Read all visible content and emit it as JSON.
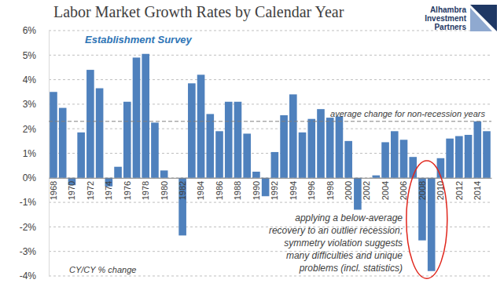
{
  "chart_data": {
    "type": "bar",
    "title": "Labor Market Growth Rates by Calendar Year",
    "subtitle": "Establishment Survey",
    "brand": [
      "Alhambra",
      "Investment",
      "Partners"
    ],
    "y_label": "CY/CY % change",
    "categories": [
      "1968",
      null,
      "1970",
      null,
      "1972",
      null,
      "1974",
      null,
      "1976",
      null,
      "1978",
      null,
      "1980",
      null,
      "1982",
      null,
      "1984",
      null,
      "1986",
      null,
      "1988",
      null,
      "1990",
      null,
      "1992",
      null,
      "1994",
      null,
      "1996",
      null,
      "1998",
      null,
      "2000",
      null,
      "2002",
      null,
      "2004",
      null,
      "2006",
      null,
      "2008",
      null,
      "2010",
      null,
      "2012",
      null,
      "2014",
      null
    ],
    "values": [
      3.5,
      2.85,
      -0.3,
      1.85,
      4.4,
      3.65,
      -0.35,
      0.45,
      3.1,
      4.9,
      5.05,
      2.25,
      0.3,
      0,
      -2.35,
      3.85,
      4.2,
      2.6,
      1.9,
      3.1,
      3.1,
      1.8,
      0.25,
      -0.75,
      1.05,
      2.55,
      3.4,
      1.85,
      2.4,
      2.8,
      2.45,
      2.5,
      1.5,
      -1.3,
      0,
      0.1,
      1.45,
      1.9,
      1.55,
      0.85,
      -2.55,
      -3.8,
      0.8,
      1.6,
      1.7,
      1.75,
      2.3,
      1.9
    ],
    "color": "#4f81bd",
    "ylim": [
      -4,
      6
    ],
    "yticks": [
      {
        "value": -4,
        "label": "-4%"
      },
      {
        "value": -3,
        "label": "-3%"
      },
      {
        "value": -2,
        "label": "-2%"
      },
      {
        "value": -1,
        "label": "-1%"
      },
      {
        "value": 0,
        "label": "0%"
      },
      {
        "value": 1,
        "label": "1%"
      },
      {
        "value": 2,
        "label": "2%"
      },
      {
        "value": 3,
        "label": "3%"
      },
      {
        "value": 4,
        "label": "4%"
      },
      {
        "value": 5,
        "label": "5%"
      },
      {
        "value": 6,
        "label": "6%"
      }
    ],
    "grid": true,
    "reference_line": {
      "value": 2.3,
      "label": "average change for non-recession years"
    },
    "annotation": [
      "applying a below-average",
      "recovery to an outlier recession;",
      "symmetry violation suggests",
      "many difficulties and unique",
      "problems (incl. statistics)"
    ]
  }
}
